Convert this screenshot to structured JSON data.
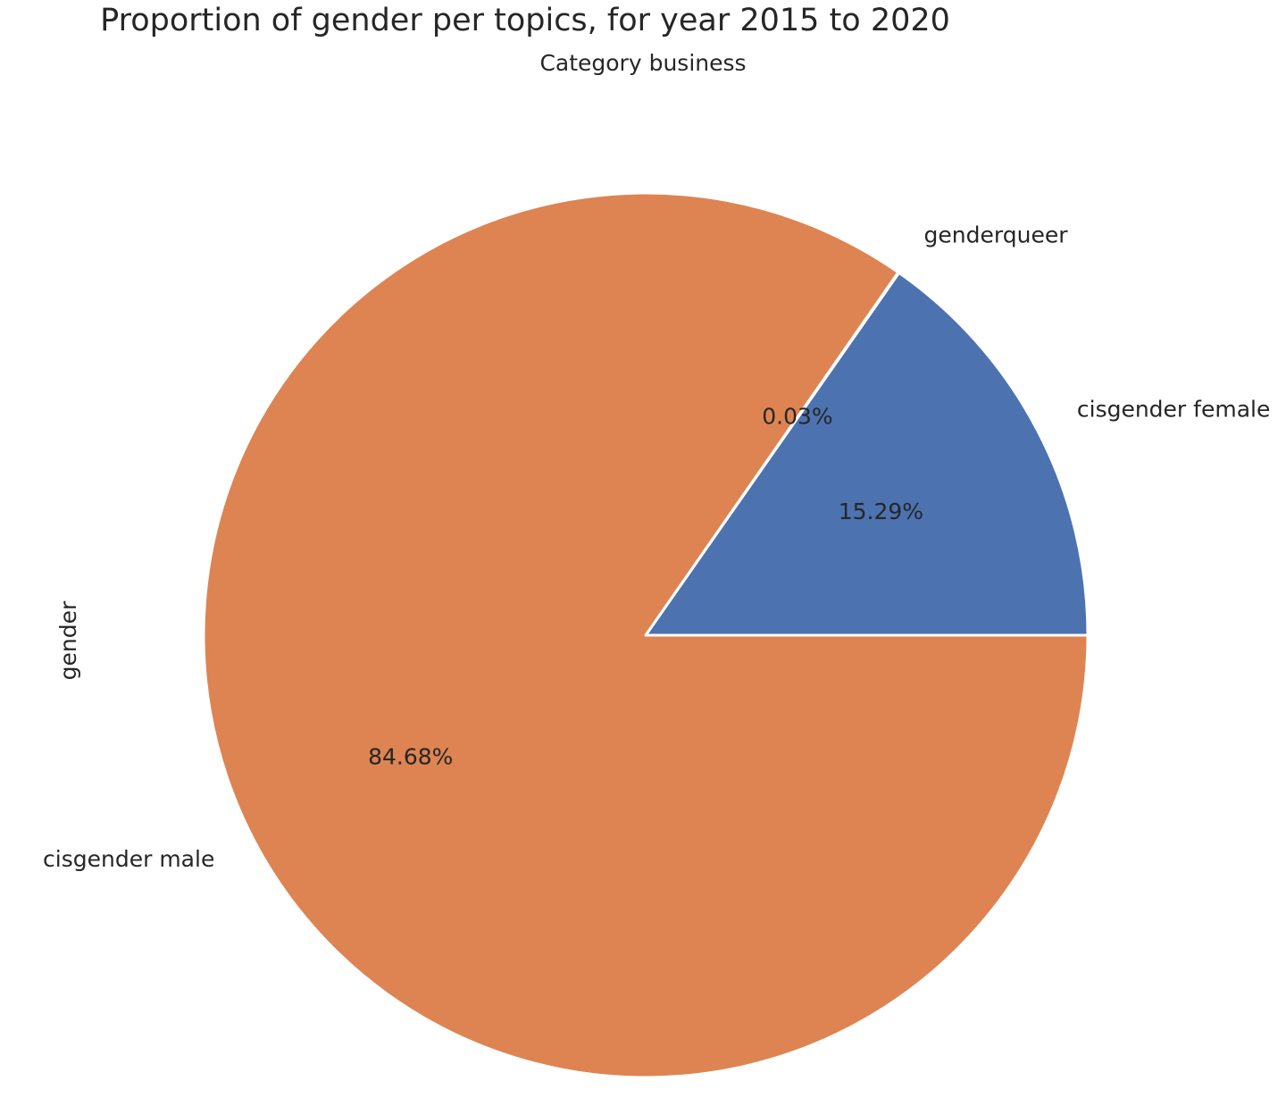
{
  "chart_data": {
    "type": "pie",
    "title": "Proportion of gender per topics, for year 2015 to 2020",
    "subtitle": "Category business",
    "ylabel": "gender",
    "start_angle_deg": 0,
    "direction": "counterclockwise",
    "slices": [
      {
        "label": "cisgender female",
        "value": 15.29,
        "pct_label": "15.29%",
        "color": "#4c72b0"
      },
      {
        "label": "genderqueer",
        "value": 0.03,
        "pct_label": "0.03%",
        "color": "#55a868"
      },
      {
        "label": "cisgender male",
        "value": 84.68,
        "pct_label": "84.68%",
        "color": "#dd8452"
      }
    ]
  }
}
